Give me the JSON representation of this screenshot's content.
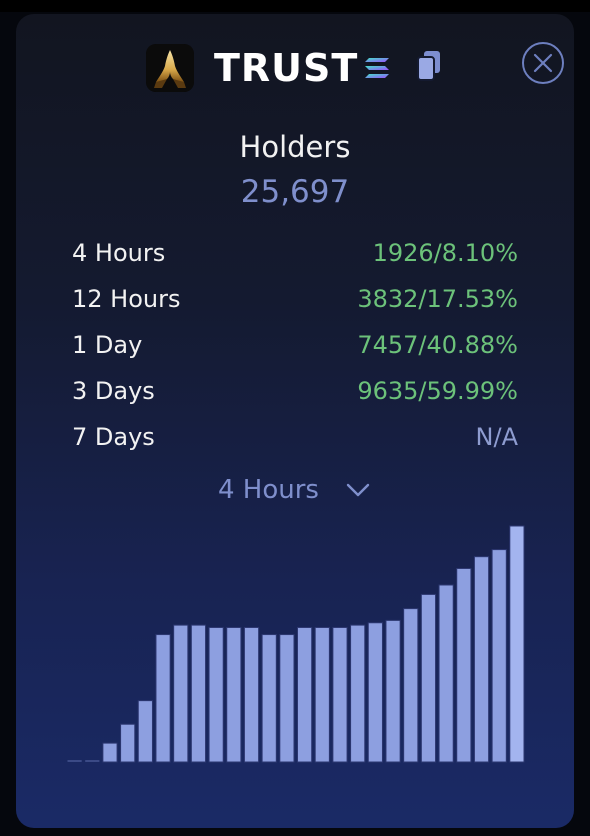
{
  "header": {
    "token_name": "TRUST",
    "logo_icon": "praying-hands-icon",
    "chain_icon": "solana-icon",
    "copy_icon": "copy-icon",
    "close_icon": "close-icon"
  },
  "holders": {
    "title": "Holders",
    "count": "25,697"
  },
  "stats": [
    {
      "label": "4 Hours",
      "value": "1926/8.10%"
    },
    {
      "label": "12 Hours",
      "value": "3832/17.53%"
    },
    {
      "label": "1 Day",
      "value": "7457/40.88%"
    },
    {
      "label": "3 Days",
      "value": "9635/59.99%"
    },
    {
      "label": "7 Days",
      "value": "N/A"
    }
  ],
  "period_selector": {
    "selected": "4 Hours"
  },
  "colors": {
    "positive": "#6cc27a",
    "accent": "#7f8fcc",
    "bar_fill": "#8d9fe0",
    "bar_last": "#a3b4ef"
  },
  "chart_data": {
    "type": "bar",
    "values": [
      0,
      0,
      0.08,
      0.16,
      0.26,
      0.54,
      0.58,
      0.58,
      0.57,
      0.57,
      0.57,
      0.54,
      0.54,
      0.57,
      0.57,
      0.57,
      0.58,
      0.59,
      0.6,
      0.65,
      0.71,
      0.75,
      0.82,
      0.87,
      0.9,
      1.0
    ],
    "ylim": [
      0,
      1
    ]
  }
}
